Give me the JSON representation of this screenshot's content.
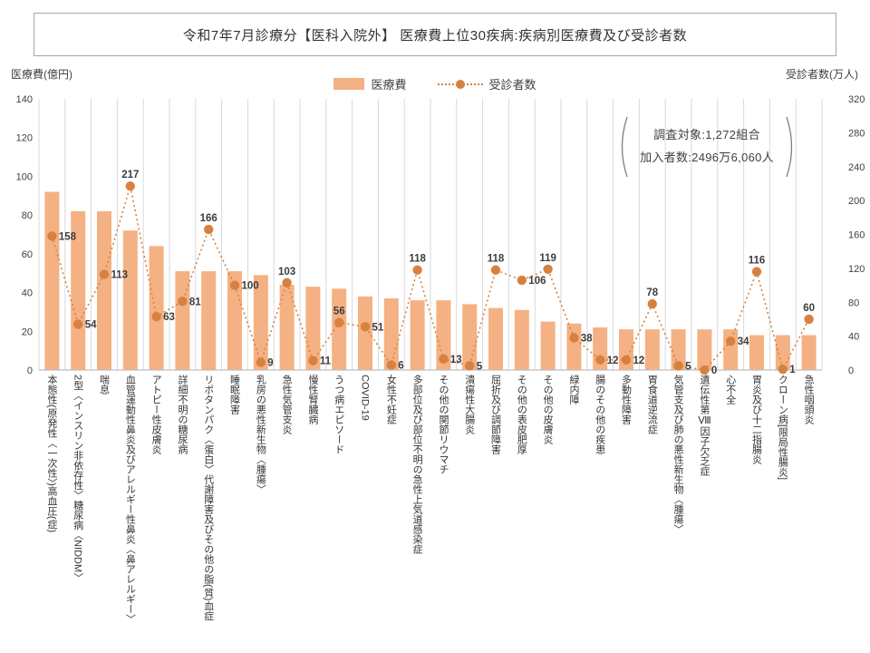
{
  "title": "令和7年7月診療分【医科入院外】 医療費上位30疾病:疾病別医療費及び受診者数",
  "left_axis_title": "医療費(億円)",
  "right_axis_title": "受診者数(万人)",
  "legend": {
    "bar_label": "医療費",
    "line_label": "受診者数"
  },
  "annotation": {
    "line1": "調査対象:1,272組合",
    "line2": "加入者数:2496万6,060人"
  },
  "colors": {
    "bar": "#F4B183",
    "line": "#D8813F",
    "grid": "#D9D9D9",
    "axis": "#BFBFBF",
    "text": "#404040",
    "label": "#3D3D3D"
  },
  "chart_data": {
    "type": "bar",
    "overlay_type": "line",
    "categories": [
      "本態性(原発性〈一次性〉)高血圧(症)",
      "2型〈インスリン非依存性〉糖尿病〈NIDDM〉",
      "喘息",
      "血管運動性鼻炎及びアレルギー性鼻炎〈鼻アレルギー〉",
      "アトピー性皮膚炎",
      "詳細不明の糖尿病",
      "リポタンパク〈蛋白〉代謝障害及びその他の脂(質)血症",
      "睡眠障害",
      "乳房の悪性新生物〈腫瘍〉",
      "急性気管支炎",
      "慢性腎臓病",
      "うつ病エピソード",
      "COVID-19",
      "女性不妊症",
      "多部位及び部位不明の急性上気道感染症",
      "その他の関節リウマチ",
      "潰瘍性大腸炎",
      "屈折及び調節障害",
      "その他の表皮肥厚",
      "その他の皮膚炎",
      "緑内障",
      "腸のその他の疾患",
      "多動性障害",
      "胃食道逆流症",
      "気管支及び肺の悪性新生物〈腫瘍〉",
      "遺伝性第Ⅷ因子欠乏症",
      "心不全",
      "胃炎及び十二指腸炎",
      "クローン病[限局性腸炎]",
      "急性咽頭炎"
    ],
    "series": [
      {
        "name": "医療費",
        "type": "bar",
        "axis": "left",
        "unit": "億円",
        "values": [
          92,
          82,
          82,
          72,
          64,
          51,
          51,
          51,
          49,
          44,
          43,
          42,
          38,
          37,
          36,
          36,
          34,
          32,
          31,
          25,
          24,
          22,
          21,
          21,
          21,
          21,
          21,
          18,
          18,
          18
        ]
      },
      {
        "name": "受診者数",
        "type": "line",
        "axis": "right",
        "unit": "万人",
        "values": [
          158,
          54,
          113,
          217,
          63,
          81,
          166,
          100,
          9,
          103,
          11,
          56,
          51,
          6,
          118,
          13,
          5,
          118,
          106,
          119,
          38,
          12,
          12,
          78,
          5,
          0,
          34,
          116,
          1,
          60
        ]
      }
    ],
    "left_ylim": [
      0,
      140
    ],
    "right_ylim": [
      0,
      320
    ],
    "left_ticks": [
      0,
      20,
      40,
      60,
      80,
      100,
      120,
      140
    ],
    "right_ticks": [
      0,
      40,
      80,
      120,
      160,
      200,
      240,
      280,
      320
    ],
    "grid": "vertical",
    "legend_position": "top-center"
  }
}
